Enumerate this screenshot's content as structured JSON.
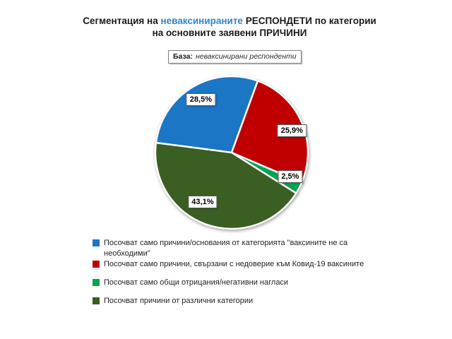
{
  "title": {
    "prefix": "Сегментация на ",
    "highlight": "неваксинираните",
    "suffix": " РЕСПОНДЕТИ по категории",
    "line2": "на основните заявени ПРИЧИНИ",
    "highlight_color": "#2E86C8"
  },
  "base_note": {
    "label": "База:",
    "text": "неваксинирани респонденти"
  },
  "chart_data": {
    "type": "pie",
    "title": "Сегментация на неваксинираните РЕСПОНДЕТИ по категории на основните заявени ПРИЧИНИ",
    "start_angle_deg": 277.4,
    "legend_position": "bottom-left",
    "value_suffix": "%",
    "slices": [
      {
        "legend_label": "Посочват само причини/основания от категорията \"ваксините не са\nнеобходими\"",
        "value": 28.5,
        "value_label": "28,5%",
        "color": "#1B76C5"
      },
      {
        "legend_label": "Посочват само причини, свързани с недоверие към Ковид-19 ваксините",
        "value": 25.9,
        "value_label": "25,9%",
        "color": "#C00000"
      },
      {
        "legend_label": "Посочват само общи отрицания/негативни нагласи",
        "value": 2.5,
        "value_label": "2,5%",
        "color": "#00A651"
      },
      {
        "legend_label": "Посочват причини от различни категории",
        "value": 43.1,
        "value_label": "43,1%",
        "color": "#3B5E23"
      }
    ]
  }
}
